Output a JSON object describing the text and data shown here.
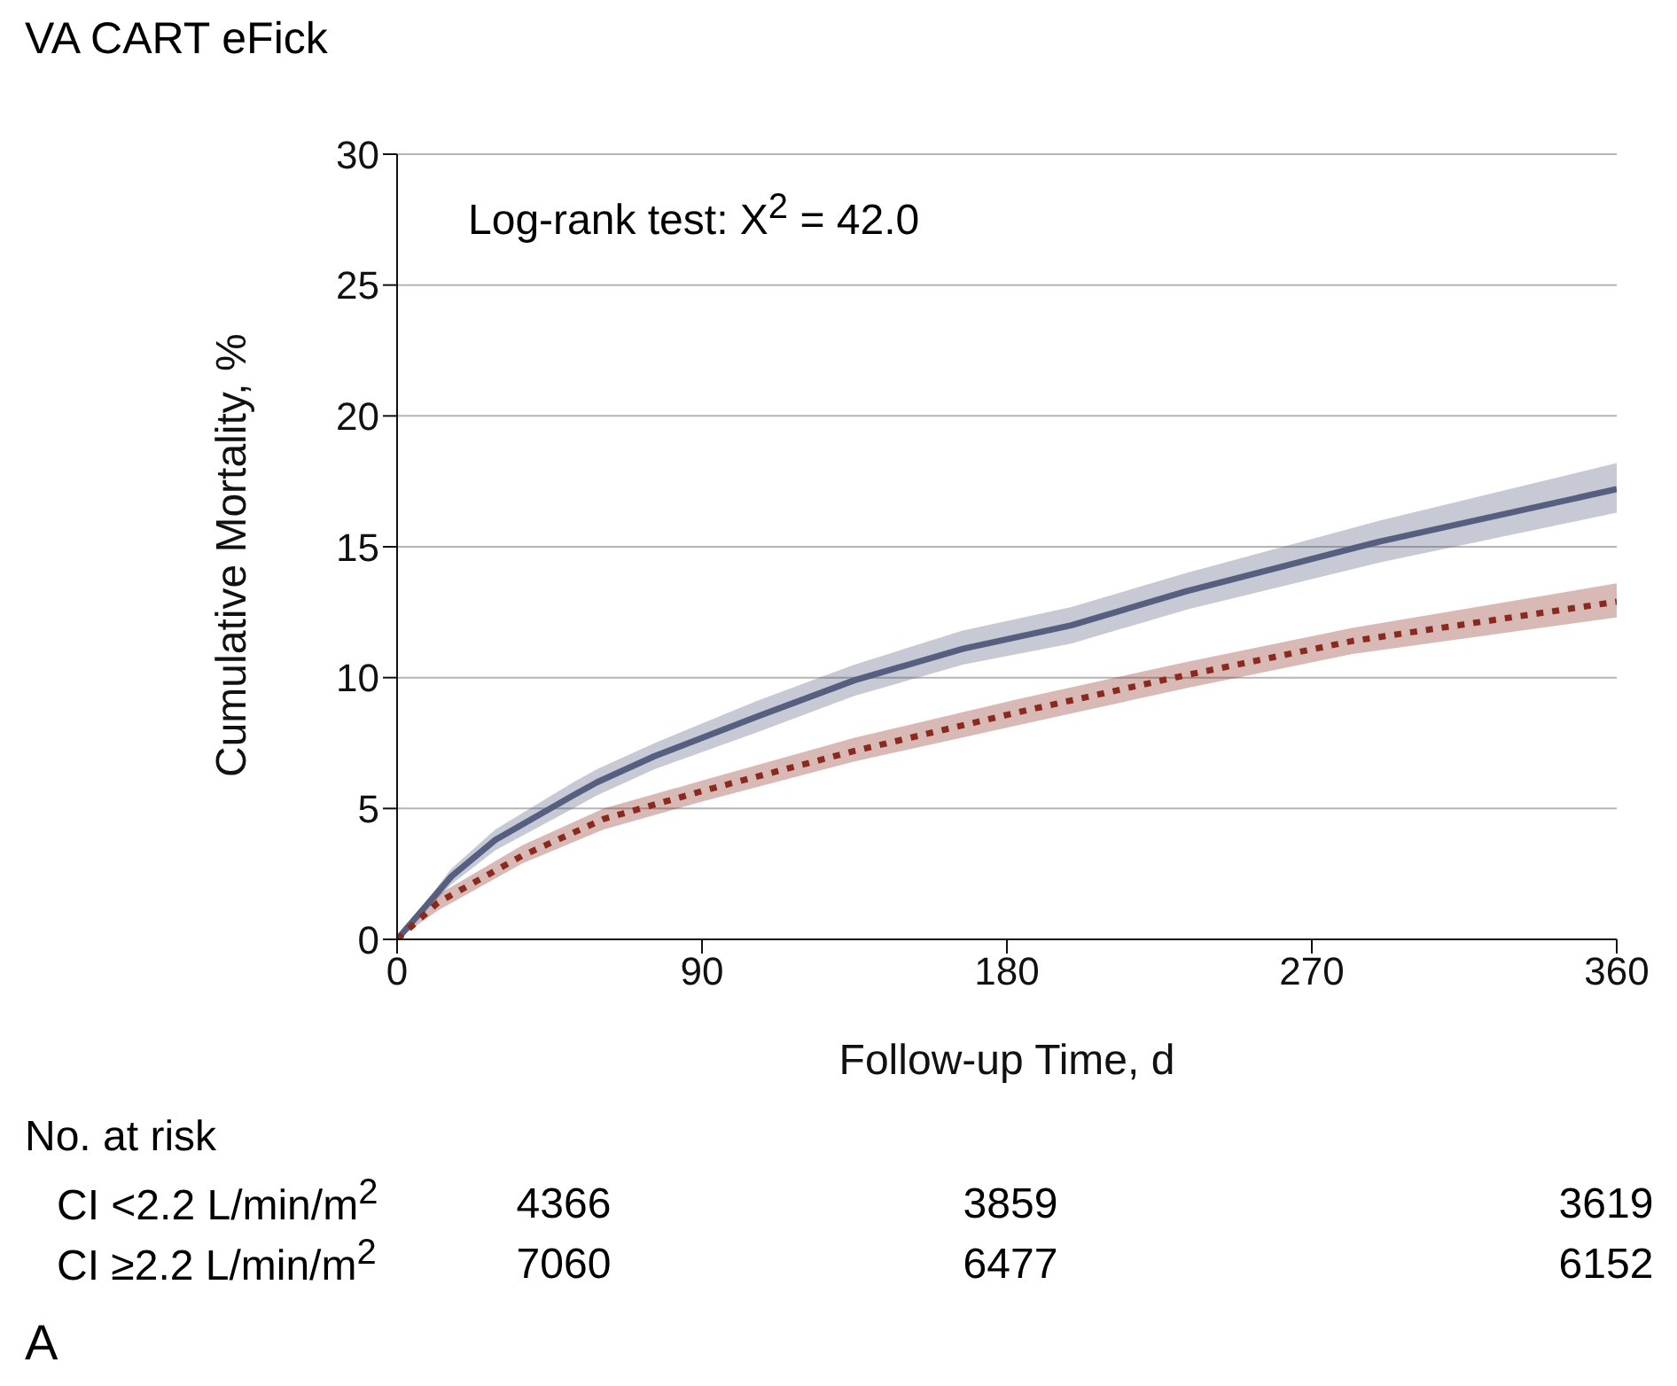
{
  "chart_data": {
    "type": "line",
    "title": "VA CART eFick",
    "xlabel": "Follow-up Time, d",
    "ylabel": "Cumulative Mortality, %",
    "xlim": [
      0,
      360
    ],
    "xticks": [
      0,
      90,
      180,
      270,
      360
    ],
    "ylim": [
      0,
      30
    ],
    "yticks": [
      0,
      5,
      10,
      15,
      20,
      25,
      30
    ],
    "grid": "y",
    "series": [
      {
        "color": "#565f80",
        "line_style": "solid",
        "x": [
          0,
          16,
          29,
          52,
          59,
          76,
          106,
          135,
          167,
          199,
          233,
          290,
          360
        ],
        "values": [
          0,
          2.4,
          3.8,
          5.5,
          6.0,
          7.0,
          8.5,
          9.9,
          11.1,
          12.0,
          13.3,
          15.2,
          17.2
        ],
        "lower": [
          0,
          2.1,
          3.4,
          5.0,
          5.5,
          6.5,
          7.9,
          9.3,
          10.5,
          11.3,
          12.6,
          14.4,
          16.3
        ],
        "upper": [
          0,
          2.7,
          4.2,
          6.0,
          6.5,
          7.5,
          9.1,
          10.5,
          11.8,
          12.7,
          14.0,
          16.0,
          18.2
        ]
      },
      {
        "color": "#8a2a1e",
        "line_style": "dotted",
        "x": [
          0,
          12,
          37,
          61,
          91,
          135,
          184,
          233,
          282,
          360
        ],
        "values": [
          0,
          1.4,
          3.2,
          4.6,
          5.7,
          7.2,
          8.7,
          10.1,
          11.4,
          12.9
        ],
        "lower": [
          0,
          1.1,
          2.9,
          4.2,
          5.3,
          6.8,
          8.2,
          9.6,
          10.9,
          12.3
        ],
        "upper": [
          0,
          1.7,
          3.6,
          5.0,
          6.1,
          7.7,
          9.2,
          10.6,
          11.9,
          13.6
        ]
      }
    ],
    "annotations": [
      "Log-rank test: X$^{2}$ = 42.0",
      "No. at risk",
      "CI <2.2 L/min/m$^{2}$",
      "4366",
      "3859",
      "3619",
      "CI ≥2.2 L/min/m$^{2}$",
      "7060",
      "6477",
      "6152",
      "A"
    ]
  }
}
